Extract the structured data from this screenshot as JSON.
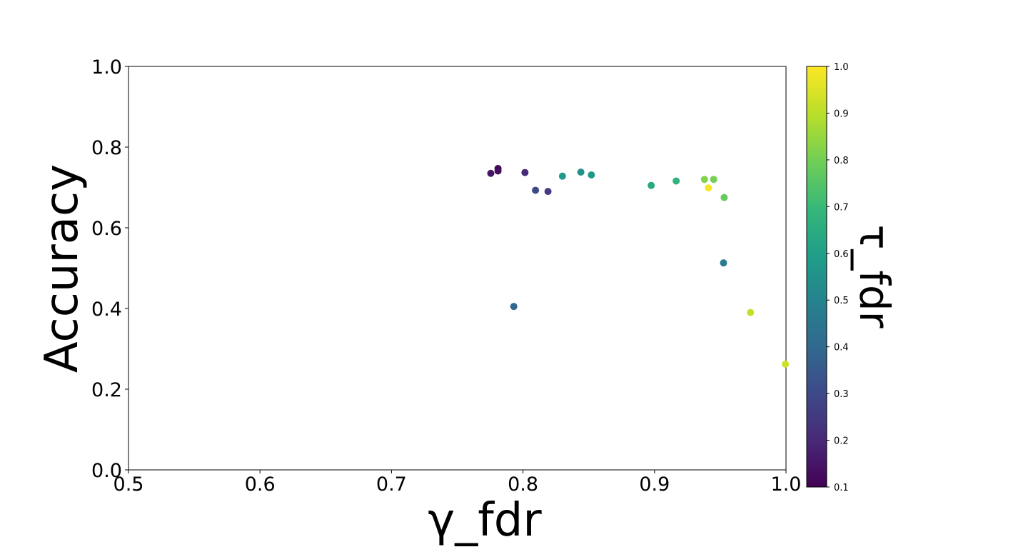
{
  "chart_data": {
    "type": "scatter",
    "title": "",
    "xlabel": "γ_fdr",
    "ylabel": "Accuracy",
    "colorbar_label": "τ_fdr",
    "xlim": [
      0.5,
      1.0
    ],
    "ylim": [
      0.0,
      1.0
    ],
    "x_ticks": [
      "0.5",
      "0.6",
      "0.7",
      "0.8",
      "0.9",
      "1.0"
    ],
    "y_ticks": [
      "0.0",
      "0.2",
      "0.4",
      "0.6",
      "0.8",
      "1.0"
    ],
    "colorbar_ticks": [
      "0.1",
      "0.2",
      "0.3",
      "0.4",
      "0.5",
      "0.6",
      "0.7",
      "0.8",
      "0.9",
      "1.0"
    ],
    "colorbar_range": [
      0.1,
      1.0
    ],
    "colormap": "viridis",
    "grid": false,
    "points": [
      {
        "x": 0.7755,
        "y": 0.735,
        "c": 0.15
      },
      {
        "x": 0.781,
        "y": 0.747,
        "c": 0.12
      },
      {
        "x": 0.781,
        "y": 0.741,
        "c": 0.13
      },
      {
        "x": 0.8015,
        "y": 0.737,
        "c": 0.2
      },
      {
        "x": 0.8095,
        "y": 0.693,
        "c": 0.3
      },
      {
        "x": 0.819,
        "y": 0.69,
        "c": 0.26
      },
      {
        "x": 0.793,
        "y": 0.405,
        "c": 0.4
      },
      {
        "x": 0.83,
        "y": 0.728,
        "c": 0.58
      },
      {
        "x": 0.844,
        "y": 0.738,
        "c": 0.55
      },
      {
        "x": 0.852,
        "y": 0.731,
        "c": 0.57
      },
      {
        "x": 0.8975,
        "y": 0.705,
        "c": 0.64
      },
      {
        "x": 0.9165,
        "y": 0.716,
        "c": 0.68
      },
      {
        "x": 0.938,
        "y": 0.72,
        "c": 0.82
      },
      {
        "x": 0.941,
        "y": 0.699,
        "c": 0.99
      },
      {
        "x": 0.945,
        "y": 0.72,
        "c": 0.8
      },
      {
        "x": 0.953,
        "y": 0.675,
        "c": 0.78
      },
      {
        "x": 0.9525,
        "y": 0.513,
        "c": 0.47
      },
      {
        "x": 0.973,
        "y": 0.39,
        "c": 0.91
      },
      {
        "x": 0.9995,
        "y": 0.262,
        "c": 0.93
      }
    ]
  }
}
